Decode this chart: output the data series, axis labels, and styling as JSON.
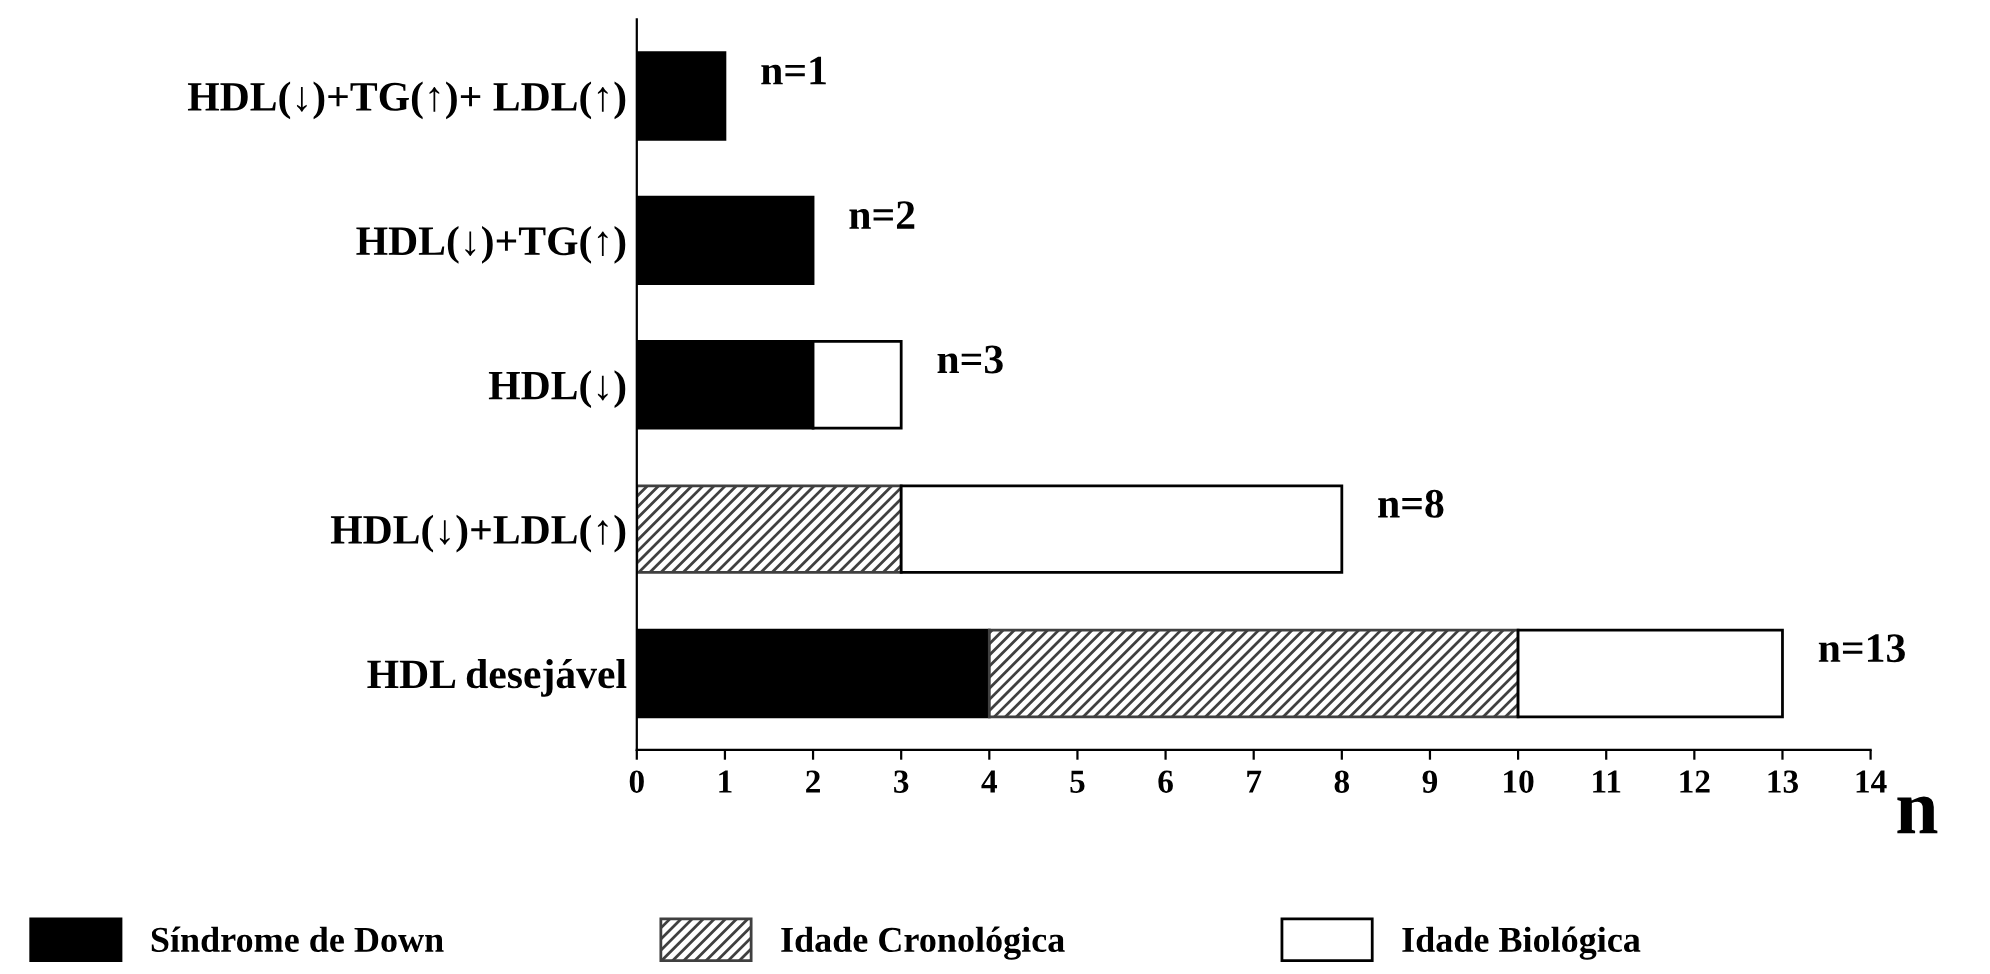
{
  "chart_data": {
    "type": "bar",
    "orientation": "horizontal",
    "stacked": true,
    "categories": [
      "HDL(↓)+TG(↑)+ LDL(↑)",
      "HDL(↓)+TG(↑)",
      "HDL(↓)",
      "HDL(↓)+LDL(↑)",
      "HDL desejável"
    ],
    "series": [
      {
        "name": "Síndrome de Down",
        "color": "#000000",
        "values": [
          1,
          2,
          2,
          0,
          4
        ]
      },
      {
        "name": "Idade Cronológica",
        "color": "#404040",
        "values": [
          0,
          0,
          0,
          3,
          6
        ]
      },
      {
        "name": "Idade Biológica",
        "color": "#ffffff",
        "values": [
          0,
          0,
          1,
          5,
          3
        ]
      }
    ],
    "totals": [
      "n=1",
      "n=2",
      "n=3",
      "n=8",
      "n=13"
    ],
    "xlabel": "n",
    "xlim": [
      0,
      14
    ],
    "xticks": [
      0,
      1,
      2,
      3,
      4,
      5,
      6,
      7,
      8,
      9,
      10,
      11,
      12,
      13,
      14
    ],
    "grid": false,
    "legend": "bottom"
  }
}
